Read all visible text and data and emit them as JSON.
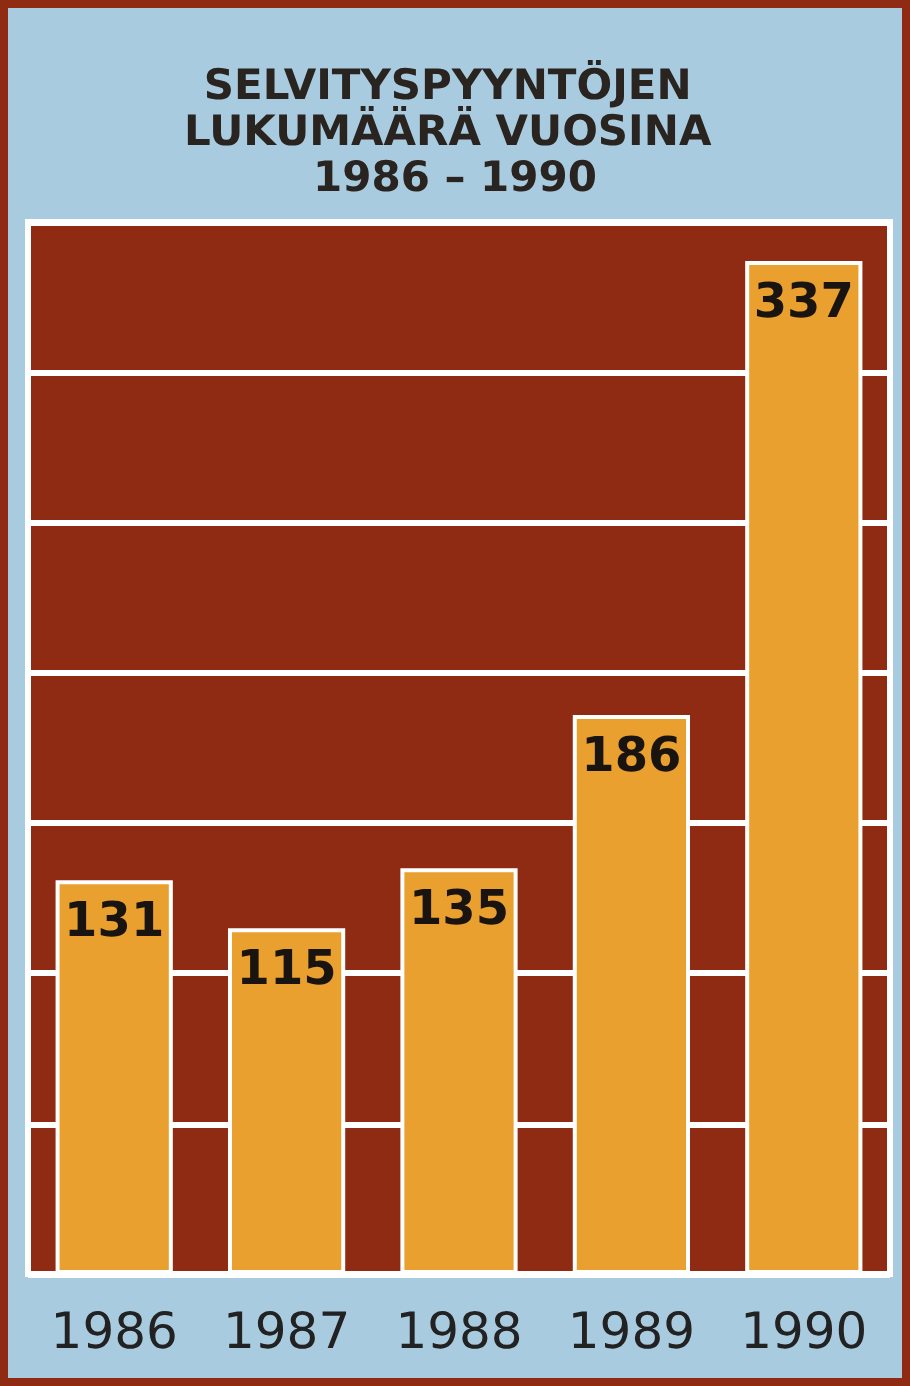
{
  "chart_data": {
    "type": "bar",
    "title": "SELVITYSPYYNTÖJEN LUKUMÄÄRÄ VUOSINA 1986 – 1990",
    "categories": [
      "1986",
      "1987",
      "1988",
      "1989",
      "1990"
    ],
    "values": [
      131,
      115,
      135,
      186,
      337
    ],
    "color": "#e9a02e",
    "grid": "y",
    "tick_labels": "x",
    "data_labels": true
  }
}
